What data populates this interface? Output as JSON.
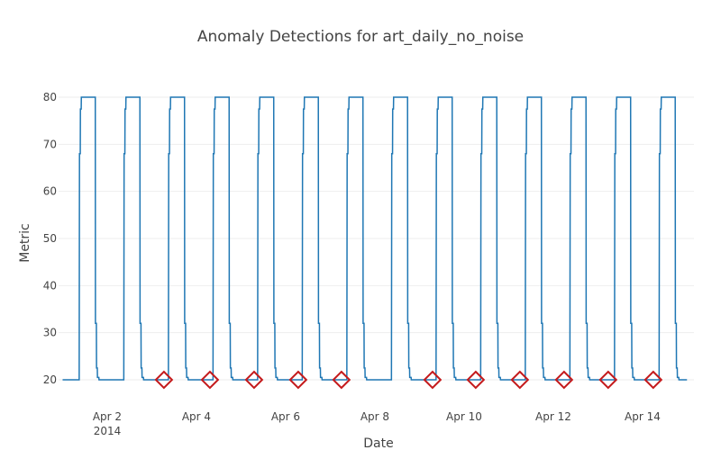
{
  "chart_data": {
    "type": "line",
    "title": "Anomaly Detections for art_daily_no_noise",
    "x_label": "Date",
    "y_label": "Metric",
    "series": [
      {
        "color": "#1f77b4",
        "mode": "lines",
        "x": [
          "2014-04-01 00:00",
          "2014-04-01 08:55",
          "2014-04-01 09:05",
          "2014-04-01 09:30",
          "2014-04-01 09:35",
          "2014-04-01 10:00",
          "2014-04-01 10:05",
          "2014-04-01 17:35",
          "2014-04-01 17:40",
          "2014-04-01 18:10",
          "2014-04-01 18:15",
          "2014-04-01 18:40",
          "2014-04-01 18:45",
          "2014-04-01 19:30",
          "2014-04-01 19:35",
          "2014-04-02 08:55",
          "2014-04-02 09:05",
          "2014-04-02 09:30",
          "2014-04-02 09:35",
          "2014-04-02 10:00",
          "2014-04-02 10:05",
          "2014-04-02 17:35",
          "2014-04-02 17:40",
          "2014-04-02 18:10",
          "2014-04-02 18:15",
          "2014-04-02 18:40",
          "2014-04-02 18:45",
          "2014-04-02 19:30",
          "2014-04-02 19:35",
          "2014-04-03 08:55",
          "2014-04-03 09:05",
          "2014-04-03 09:30",
          "2014-04-03 09:35",
          "2014-04-03 10:00",
          "2014-04-03 10:05",
          "2014-04-03 17:35",
          "2014-04-03 17:40",
          "2014-04-03 18:10",
          "2014-04-03 18:15",
          "2014-04-03 18:40",
          "2014-04-03 18:45",
          "2014-04-03 19:30",
          "2014-04-03 19:35",
          "2014-04-04 08:55",
          "2014-04-04 09:05",
          "2014-04-04 09:30",
          "2014-04-04 09:35",
          "2014-04-04 10:00",
          "2014-04-04 10:05",
          "2014-04-04 17:35",
          "2014-04-04 17:40",
          "2014-04-04 18:10",
          "2014-04-04 18:15",
          "2014-04-04 18:40",
          "2014-04-04 18:45",
          "2014-04-04 19:30",
          "2014-04-04 19:35",
          "2014-04-05 08:55",
          "2014-04-05 09:05",
          "2014-04-05 09:30",
          "2014-04-05 09:35",
          "2014-04-05 10:00",
          "2014-04-05 10:05",
          "2014-04-05 17:35",
          "2014-04-05 17:40",
          "2014-04-05 18:10",
          "2014-04-05 18:15",
          "2014-04-05 18:40",
          "2014-04-05 18:45",
          "2014-04-05 19:30",
          "2014-04-05 19:35",
          "2014-04-06 08:55",
          "2014-04-06 09:05",
          "2014-04-06 09:30",
          "2014-04-06 09:35",
          "2014-04-06 10:00",
          "2014-04-06 10:05",
          "2014-04-06 17:35",
          "2014-04-06 17:40",
          "2014-04-06 18:10",
          "2014-04-06 18:15",
          "2014-04-06 18:40",
          "2014-04-06 18:45",
          "2014-04-06 19:30",
          "2014-04-06 19:35",
          "2014-04-07 08:55",
          "2014-04-07 09:05",
          "2014-04-07 09:30",
          "2014-04-07 09:35",
          "2014-04-07 10:00",
          "2014-04-07 10:05",
          "2014-04-07 17:35",
          "2014-04-07 17:40",
          "2014-04-07 18:10",
          "2014-04-07 18:15",
          "2014-04-07 18:40",
          "2014-04-07 18:45",
          "2014-04-07 19:30",
          "2014-04-07 19:35",
          "2014-04-08 08:55",
          "2014-04-08 09:05",
          "2014-04-08 09:30",
          "2014-04-08 09:35",
          "2014-04-08 10:00",
          "2014-04-08 10:05",
          "2014-04-08 17:35",
          "2014-04-08 17:40",
          "2014-04-08 18:10",
          "2014-04-08 18:15",
          "2014-04-08 18:40",
          "2014-04-08 18:45",
          "2014-04-08 19:30",
          "2014-04-08 19:35",
          "2014-04-09 08:55",
          "2014-04-09 09:05",
          "2014-04-09 09:30",
          "2014-04-09 09:35",
          "2014-04-09 10:00",
          "2014-04-09 10:05",
          "2014-04-09 17:35",
          "2014-04-09 17:40",
          "2014-04-09 18:10",
          "2014-04-09 18:15",
          "2014-04-09 18:40",
          "2014-04-09 18:45",
          "2014-04-09 19:30",
          "2014-04-09 19:35",
          "2014-04-10 08:55",
          "2014-04-10 09:05",
          "2014-04-10 09:30",
          "2014-04-10 09:35",
          "2014-04-10 10:00",
          "2014-04-10 10:05",
          "2014-04-10 17:35",
          "2014-04-10 17:40",
          "2014-04-10 18:10",
          "2014-04-10 18:15",
          "2014-04-10 18:40",
          "2014-04-10 18:45",
          "2014-04-10 19:30",
          "2014-04-10 19:35",
          "2014-04-11 08:55",
          "2014-04-11 09:05",
          "2014-04-11 09:30",
          "2014-04-11 09:35",
          "2014-04-11 10:00",
          "2014-04-11 10:05",
          "2014-04-11 17:35",
          "2014-04-11 17:40",
          "2014-04-11 18:10",
          "2014-04-11 18:15",
          "2014-04-11 18:40",
          "2014-04-11 18:45",
          "2014-04-11 19:30",
          "2014-04-11 19:35",
          "2014-04-12 08:55",
          "2014-04-12 09:05",
          "2014-04-12 09:30",
          "2014-04-12 09:35",
          "2014-04-12 10:00",
          "2014-04-12 10:05",
          "2014-04-12 17:35",
          "2014-04-12 17:40",
          "2014-04-12 18:10",
          "2014-04-12 18:15",
          "2014-04-12 18:40",
          "2014-04-12 18:45",
          "2014-04-12 19:30",
          "2014-04-12 19:35",
          "2014-04-13 08:55",
          "2014-04-13 09:05",
          "2014-04-13 09:30",
          "2014-04-13 09:35",
          "2014-04-13 10:00",
          "2014-04-13 10:05",
          "2014-04-13 17:35",
          "2014-04-13 17:40",
          "2014-04-13 18:10",
          "2014-04-13 18:15",
          "2014-04-13 18:40",
          "2014-04-13 18:45",
          "2014-04-13 19:30",
          "2014-04-13 19:35",
          "2014-04-14 08:55",
          "2014-04-14 09:05",
          "2014-04-14 09:30",
          "2014-04-14 09:35",
          "2014-04-14 10:00",
          "2014-04-14 10:05",
          "2014-04-14 17:35",
          "2014-04-14 17:40",
          "2014-04-14 18:10",
          "2014-04-14 18:15",
          "2014-04-14 18:40",
          "2014-04-14 18:45",
          "2014-04-14 19:30",
          "2014-04-14 19:35",
          "2014-04-14 23:55"
        ],
        "values": [
          20,
          20,
          68,
          68,
          77.5,
          77.5,
          80,
          80,
          32,
          32,
          22.5,
          22.5,
          20.5,
          20.5,
          20,
          20,
          68,
          68,
          77.5,
          77.5,
          80,
          80,
          32,
          32,
          22.5,
          22.5,
          20.5,
          20.5,
          20,
          20,
          68,
          68,
          77.5,
          77.5,
          80,
          80,
          32,
          32,
          22.5,
          22.5,
          20.5,
          20.5,
          20,
          20,
          68,
          68,
          77.5,
          77.5,
          80,
          80,
          32,
          32,
          22.5,
          22.5,
          20.5,
          20.5,
          20,
          20,
          68,
          68,
          77.5,
          77.5,
          80,
          80,
          32,
          32,
          22.5,
          22.5,
          20.5,
          20.5,
          20,
          20,
          68,
          68,
          77.5,
          77.5,
          80,
          80,
          32,
          32,
          22.5,
          22.5,
          20.5,
          20.5,
          20,
          20,
          68,
          68,
          77.5,
          77.5,
          80,
          80,
          32,
          32,
          22.5,
          22.5,
          20.5,
          20.5,
          20,
          20,
          68,
          68,
          77.5,
          77.5,
          80,
          80,
          32,
          32,
          22.5,
          22.5,
          20.5,
          20.5,
          20,
          20,
          68,
          68,
          77.5,
          77.5,
          80,
          80,
          32,
          32,
          22.5,
          22.5,
          20.5,
          20.5,
          20,
          20,
          68,
          68,
          77.5,
          77.5,
          80,
          80,
          32,
          32,
          22.5,
          22.5,
          20.5,
          20.5,
          20,
          20,
          68,
          68,
          77.5,
          77.5,
          80,
          80,
          32,
          32,
          22.5,
          22.5,
          20.5,
          20.5,
          20,
          20,
          68,
          68,
          77.5,
          77.5,
          80,
          80,
          32,
          32,
          22.5,
          22.5,
          20.5,
          20.5,
          20,
          20,
          68,
          68,
          77.5,
          77.5,
          80,
          80,
          32,
          32,
          22.5,
          22.5,
          20.5,
          20.5,
          20,
          20,
          68,
          68,
          77.5,
          77.5,
          80,
          80,
          32,
          32,
          22.5,
          22.5,
          20.5,
          20.5,
          20,
          20
        ]
      },
      {
        "color": "#c41a1c",
        "mode": "markers",
        "marker": "diamond-open",
        "x": [
          "2014-04-03 06:30",
          "2014-04-04 07:15",
          "2014-04-05 07:00",
          "2014-04-06 06:45",
          "2014-04-07 06:00",
          "2014-04-09 07:00",
          "2014-04-10 06:15",
          "2014-04-11 06:00",
          "2014-04-12 05:45",
          "2014-04-13 05:30",
          "2014-04-14 05:45"
        ],
        "values": [
          20,
          20,
          20,
          20,
          20,
          20,
          20,
          20,
          20,
          20,
          20
        ]
      }
    ],
    "xlim": [
      "2014-03-31 21:50",
      "2014-04-15 03:40"
    ],
    "xticks": [
      {
        "value": "2014-04-02",
        "label": "Apr 2"
      },
      {
        "value": "2014-04-04",
        "label": "Apr 4"
      },
      {
        "value": "2014-04-06",
        "label": "Apr 6"
      },
      {
        "value": "2014-04-08",
        "label": "Apr 8"
      },
      {
        "value": "2014-04-10",
        "label": "Apr 10"
      },
      {
        "value": "2014-04-12",
        "label": "Apr 12"
      },
      {
        "value": "2014-04-14",
        "label": "Apr 14"
      }
    ],
    "x_year_label": "2014",
    "ylim": [
      14.65,
      85.35
    ],
    "yticks": [
      20,
      30,
      40,
      50,
      60,
      70,
      80
    ],
    "grid": true
  }
}
